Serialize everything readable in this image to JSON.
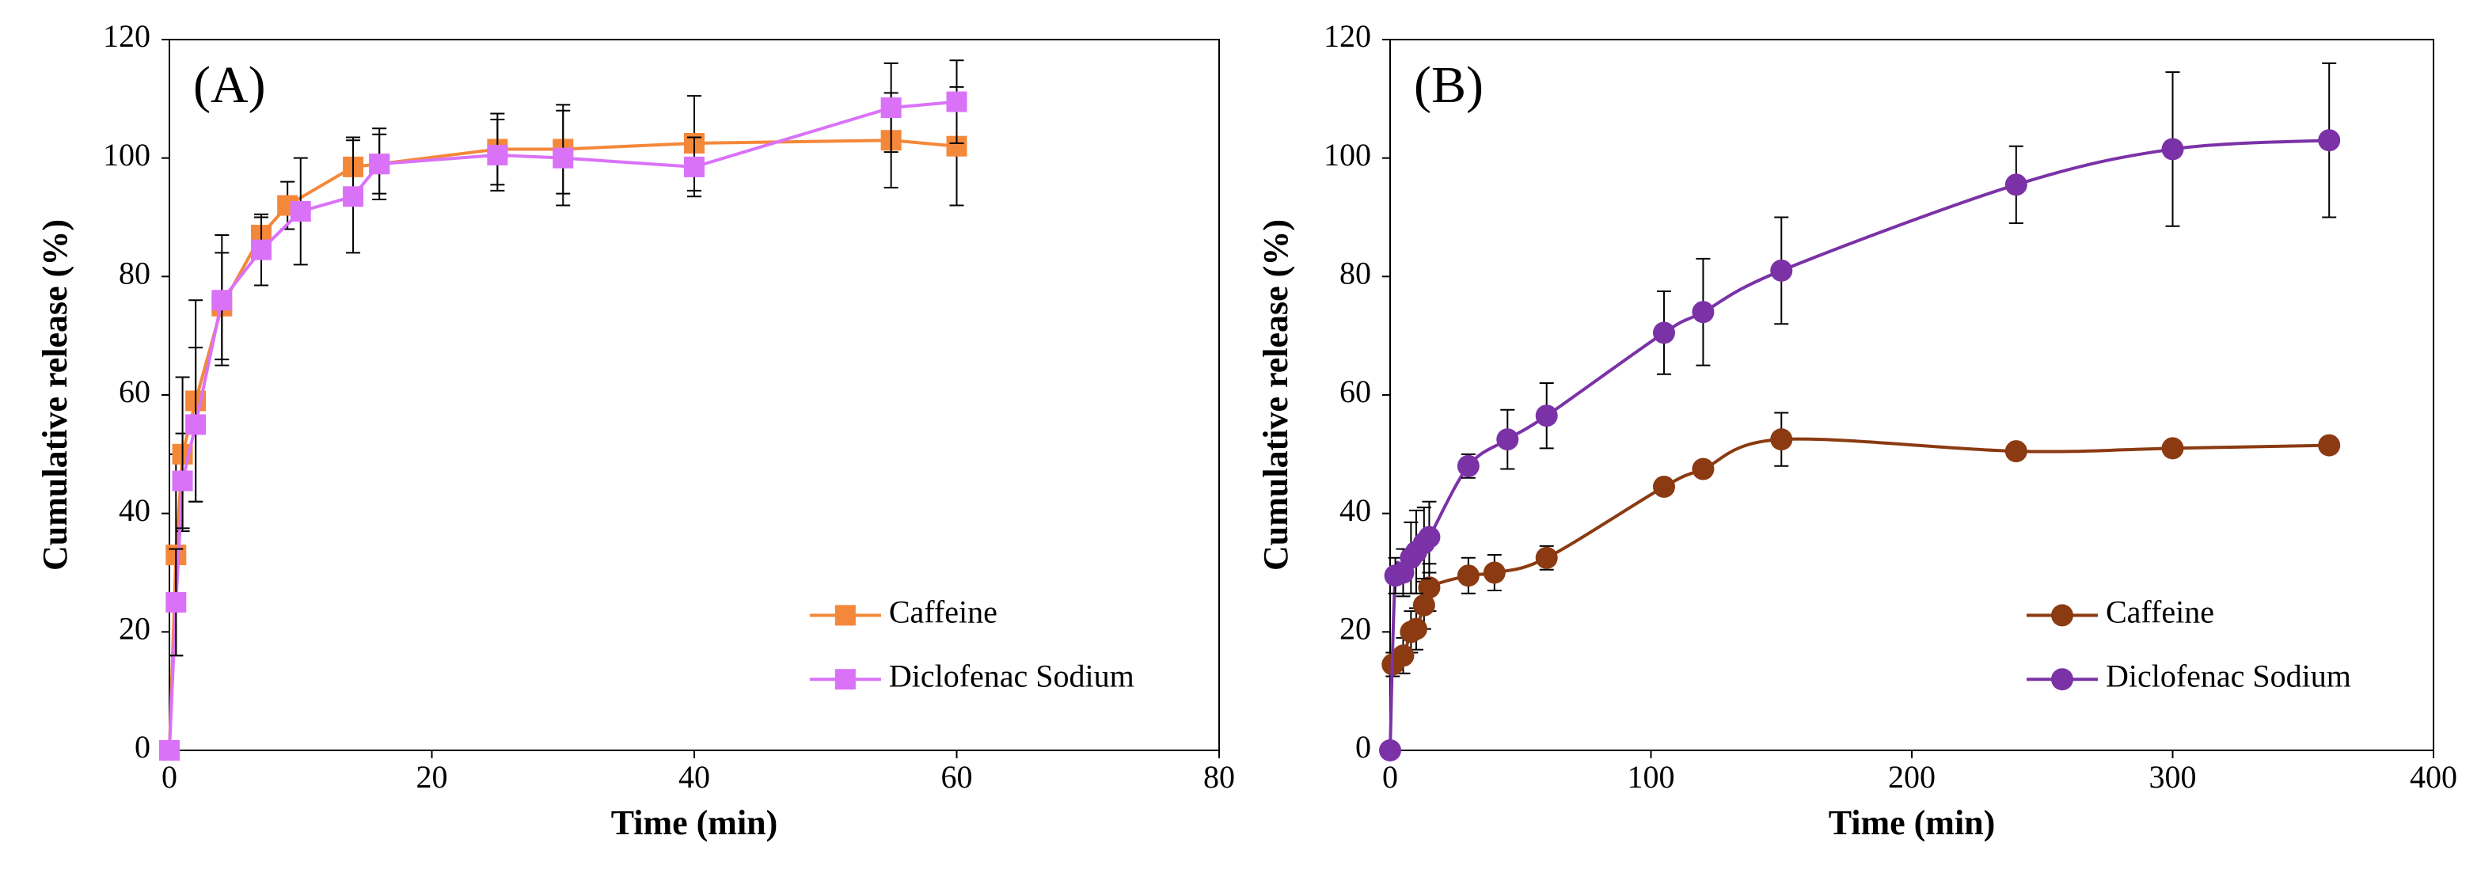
{
  "chart_data": [
    {
      "type": "line",
      "annotation": "(A)",
      "xlabel": "Time (min)",
      "ylabel": "Cumulative release (%)",
      "xlim": [
        0,
        80
      ],
      "xticks": [
        0,
        20,
        40,
        60,
        80
      ],
      "ylim": [
        0,
        120
      ],
      "yticks": [
        0,
        20,
        40,
        60,
        80,
        100,
        120
      ],
      "legend": "lower right",
      "smooth": false,
      "series": [
        {
          "name": "Caffeine",
          "color": "#f4883a",
          "marker": "square",
          "x": [
            0,
            0.5,
            1,
            2,
            4,
            7,
            9,
            14,
            16,
            25,
            30,
            40,
            55,
            60
          ],
          "values": [
            0,
            33,
            50,
            59,
            75,
            87,
            92,
            98.5,
            99,
            101.5,
            101.5,
            102.5,
            103,
            102
          ],
          "errors": [
            0,
            17,
            13,
            17,
            9,
            3,
            4,
            5,
            6,
            6,
            7.5,
            8,
            8,
            10
          ]
        },
        {
          "name": "Diclofenac Sodium",
          "color": "#da72f8",
          "marker": "square",
          "x": [
            0,
            0.5,
            1,
            2,
            4,
            7,
            10,
            14,
            16,
            25,
            30,
            40,
            55,
            60
          ],
          "values": [
            0,
            25,
            45.5,
            55,
            76,
            84.5,
            91,
            93.5,
            99,
            100.5,
            100,
            98.5,
            108.5,
            109.5
          ],
          "errors": [
            0,
            9,
            8,
            13,
            11,
            6,
            9,
            9.5,
            5,
            6,
            8,
            5,
            7.5,
            7
          ]
        }
      ]
    },
    {
      "type": "line",
      "annotation": "(B)",
      "xlabel": "Time (min)",
      "ylabel": "Cumulative release (%)",
      "xlim": [
        0,
        400
      ],
      "xticks": [
        0,
        100,
        200,
        300,
        400
      ],
      "ylim": [
        0,
        120
      ],
      "yticks": [
        0,
        20,
        40,
        60,
        80,
        100,
        120
      ],
      "legend": "lower right",
      "smooth": true,
      "series": [
        {
          "name": "Caffeine",
          "color": "#8b3a12",
          "marker": "circle",
          "x": [
            1,
            5,
            8,
            10,
            13,
            15,
            30,
            40,
            60,
            105,
            120,
            150,
            240,
            300,
            360
          ],
          "values": [
            14.5,
            16,
            20,
            20.5,
            24.5,
            27.5,
            29.5,
            30,
            32.5,
            44.5,
            47.5,
            52.5,
            50.5,
            51,
            51.5
          ],
          "errors": [
            2,
            3,
            3.5,
            3.5,
            4,
            4,
            3,
            3,
            2,
            0.5,
            0.5,
            4.5,
            0.5,
            0.5,
            0.5
          ]
        },
        {
          "name": "Diclofenac Sodium",
          "color": "#7b32a6",
          "marker": "circle",
          "x": [
            0,
            2,
            5,
            8,
            10,
            13,
            15,
            30,
            45,
            60,
            105,
            120,
            150,
            240,
            300,
            360
          ],
          "values": [
            0,
            29.5,
            30,
            32.5,
            33.5,
            35,
            36,
            48,
            52.5,
            56.5,
            70.5,
            74,
            81,
            95.5,
            101.5,
            103
          ],
          "errors": [
            0,
            3,
            4,
            6,
            7,
            6,
            6,
            2,
            5,
            5.5,
            7,
            9,
            9,
            6.5,
            13,
            13
          ]
        }
      ]
    }
  ]
}
